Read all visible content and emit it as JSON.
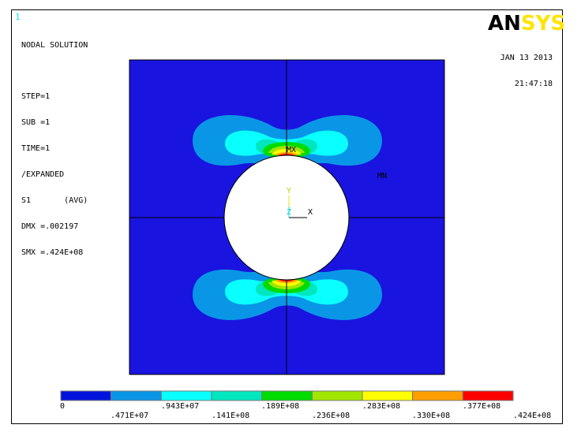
{
  "window_number": "1",
  "logo": {
    "an": "AN",
    "sys": "SYS"
  },
  "info": {
    "title": "NODAL SOLUTION",
    "step": "STEP=1",
    "sub": "SUB =1",
    "time": "TIME=1",
    "expanded": "/EXPANDED",
    "result": "S1       (AVG)",
    "dmx": "DMX =.002197",
    "smx": "SMX =.424E+08"
  },
  "date": "JAN 13 2013",
  "time": "21:47:18",
  "markers": {
    "max": "MX",
    "min": "MN"
  },
  "triad": {
    "y": "Y",
    "z": "Z",
    "x": "X"
  },
  "colors": {
    "background": "#1a14e0",
    "bands": [
      "#0014dc",
      "#0a96e6",
      "#0affff",
      "#00e6be",
      "#00dc00",
      "#a0e600",
      "#ffff00",
      "#ff9e00",
      "#ff0000"
    ],
    "hole": "#ffffff",
    "mesh_lines": "#000000"
  },
  "legend": {
    "top_labels": [
      "0",
      ".943E+07",
      ".189E+08",
      ".283E+08",
      ".377E+08"
    ],
    "bottom_labels": [
      ".471E+07",
      ".141E+08",
      ".236E+08",
      ".330E+08",
      ".424E+08"
    ]
  }
}
